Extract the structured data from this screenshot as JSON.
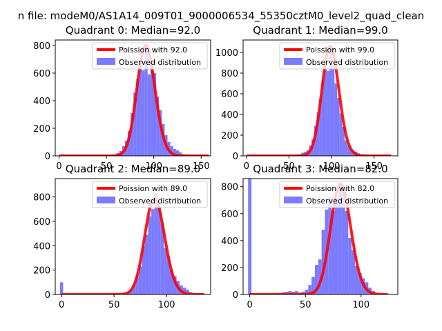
{
  "figure": {
    "suptitle": "n file: modeM0/AS1A14_009T01_9000006534_55350cztM0_level2_quad_clean"
  },
  "colors": {
    "hist": "#7b7bff",
    "poisson": "#ff0000"
  },
  "chart_data": [
    {
      "type": "bar",
      "title": "Quadrant 0: Median=92.0",
      "legend": [
        "Poission with 92.0",
        "Observed distribution"
      ],
      "legend_position": "top-right",
      "xlim": [
        -4,
        160
      ],
      "ylim": [
        0,
        840
      ],
      "xticks": [
        0,
        50,
        100,
        150
      ],
      "yticks": [
        0,
        200,
        400,
        600,
        800
      ],
      "hist_centers": [
        56,
        59,
        62,
        65,
        68,
        71,
        74,
        77,
        80,
        83,
        86,
        89,
        92,
        95,
        98,
        101,
        104,
        107,
        110,
        113,
        116,
        119,
        122,
        125,
        128,
        131,
        134
      ],
      "hist_values": [
        5,
        10,
        20,
        35,
        70,
        110,
        180,
        310,
        460,
        560,
        700,
        620,
        810,
        590,
        640,
        600,
        430,
        330,
        230,
        150,
        100,
        70,
        50,
        40,
        25,
        12,
        6
      ],
      "poisson_mean": 92.0,
      "poisson_scale": 800,
      "poisson_range": [
        0,
        158
      ]
    },
    {
      "type": "bar",
      "title": "Quadrant 1: Median=99.0",
      "legend": [
        "Poission with 99.0",
        "Observed distribution"
      ],
      "legend_position": "top-right",
      "xlim": [
        -4,
        178
      ],
      "ylim": [
        0,
        1120
      ],
      "xticks": [
        0,
        50,
        100,
        150
      ],
      "yticks": [
        0,
        200,
        400,
        600,
        800,
        1000
      ],
      "hist_centers": [
        57,
        60,
        63,
        66,
        69,
        72,
        75,
        78,
        81,
        84,
        87,
        90,
        93,
        96,
        99,
        102,
        105,
        108,
        111,
        114,
        117,
        120,
        123,
        126,
        129,
        132,
        135,
        138,
        141,
        144
      ],
      "hist_values": [
        5,
        10,
        15,
        30,
        40,
        55,
        100,
        160,
        290,
        420,
        550,
        730,
        900,
        820,
        1000,
        880,
        700,
        560,
        410,
        280,
        150,
        100,
        70,
        50,
        40,
        25,
        15,
        10,
        8,
        5
      ],
      "poisson_mean": 99.0,
      "poisson_scale": 1060,
      "poisson_range": [
        0,
        170
      ]
    },
    {
      "type": "bar",
      "title": "Quadrant 2: Median=89.0",
      "legend": [
        "Poission with 89.0",
        "Observed distribution"
      ],
      "legend_position": "top-right",
      "xlim": [
        -6,
        142
      ],
      "ylim": [
        0,
        950
      ],
      "xticks": [
        0,
        50,
        100
      ],
      "yticks": [
        0,
        200,
        400,
        600,
        800
      ],
      "hist_centers": [
        0,
        3,
        6,
        9,
        12,
        15,
        18,
        21,
        24,
        27,
        30,
        33,
        36,
        39,
        42,
        45,
        48,
        51,
        54,
        57,
        60,
        63,
        66,
        69,
        72,
        75,
        78,
        81,
        84,
        87,
        90,
        93,
        96,
        99,
        102,
        105,
        108,
        111,
        114,
        117,
        120,
        123,
        126,
        129,
        132
      ],
      "hist_values": [
        100,
        0,
        0,
        0,
        0,
        0,
        0,
        0,
        0,
        0,
        2,
        2,
        5,
        5,
        8,
        3,
        5,
        5,
        12,
        8,
        12,
        15,
        40,
        80,
        150,
        230,
        400,
        490,
        640,
        700,
        830,
        720,
        580,
        380,
        310,
        200,
        150,
        110,
        75,
        55,
        40,
        20,
        12,
        8,
        4
      ],
      "poisson_mean": 89.0,
      "poisson_scale": 790,
      "poisson_range": [
        0,
        136
      ]
    },
    {
      "type": "bar",
      "title": "Quadrant 3: Median=82.0",
      "legend": [
        "Poission with 82.0",
        "Observed distribution"
      ],
      "legend_position": "top-right",
      "xlim": [
        -6,
        133
      ],
      "ylim": [
        0,
        860
      ],
      "xticks": [
        0,
        50,
        100
      ],
      "yticks": [
        0,
        200,
        400,
        600,
        800
      ],
      "hist_centers": [
        0,
        3,
        6,
        9,
        12,
        15,
        18,
        21,
        24,
        27,
        30,
        33,
        36,
        39,
        42,
        45,
        48,
        51,
        54,
        57,
        60,
        63,
        66,
        69,
        72,
        75,
        78,
        81,
        84,
        87,
        90,
        93,
        96,
        99,
        102,
        105,
        108,
        111,
        114,
        117,
        120,
        123
      ],
      "hist_values": [
        860,
        0,
        0,
        0,
        3,
        3,
        5,
        5,
        8,
        10,
        15,
        20,
        25,
        20,
        25,
        15,
        20,
        35,
        70,
        130,
        220,
        260,
        480,
        630,
        720,
        620,
        710,
        780,
        800,
        620,
        420,
        330,
        210,
        160,
        120,
        90,
        50,
        25,
        12,
        8,
        4,
        2
      ],
      "poisson_mean": 82.0,
      "poisson_scale": 820,
      "poisson_range": [
        0,
        124
      ]
    }
  ]
}
